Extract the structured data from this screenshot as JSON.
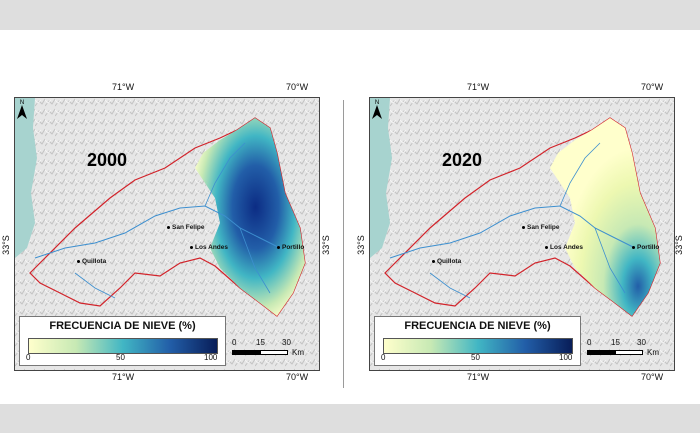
{
  "colors": {
    "ocean": "#a7d3cf",
    "boundary": "#d2232a",
    "river": "#3d8fcf",
    "legend_low": "#ffffcc",
    "legend_mid": "#41b6c4",
    "legend_high": "#081d58"
  },
  "coords": {
    "lon_left": "71°W",
    "lon_right": "70°W",
    "lat": "33°S"
  },
  "legend": {
    "title": "FRECUENCIA DE NIEVE (%)",
    "ticks": [
      "0",
      "50",
      "100"
    ]
  },
  "scale": {
    "labels": [
      "0",
      "15",
      "30"
    ],
    "unit": "Km"
  },
  "cities": [
    "San Felipe",
    "Los Andes",
    "Quillota",
    "Portillo"
  ],
  "maps": [
    {
      "year": "2000",
      "snow_level": "high"
    },
    {
      "year": "2020",
      "snow_level": "low"
    }
  ]
}
